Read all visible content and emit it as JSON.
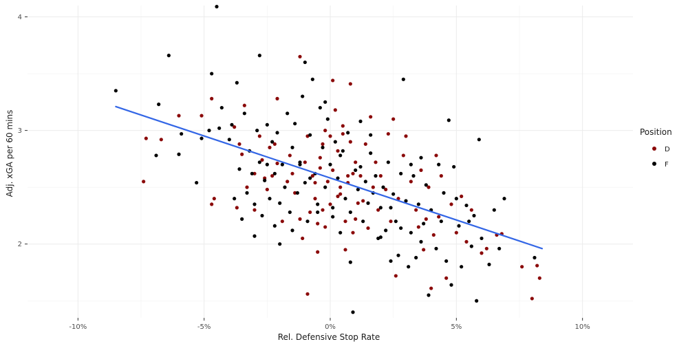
{
  "chart_data": {
    "type": "scatter",
    "xlabel": "Rel. Defensive Stop Rate",
    "ylabel": "Adj. xGA per 60 mins",
    "xlim": [
      -0.12,
      0.12
    ],
    "ylim": [
      1.35,
      4.1
    ],
    "x_ticks": [
      {
        "value": -0.1,
        "label": "-10%"
      },
      {
        "value": -0.05,
        "label": "-5%"
      },
      {
        "value": 0.0,
        "label": "0%"
      },
      {
        "value": 0.05,
        "label": "5%"
      },
      {
        "value": 0.1,
        "label": "10%"
      }
    ],
    "y_ticks": [
      {
        "value": 2,
        "label": "2"
      },
      {
        "value": 3,
        "label": "3"
      },
      {
        "value": 4,
        "label": "4"
      }
    ],
    "legend": {
      "title": "Position",
      "placement": "right",
      "entries": [
        {
          "label": "D",
          "color": "#8b0a0a"
        },
        {
          "label": "F",
          "color": "#000000"
        }
      ]
    },
    "trend_line": {
      "color": "#3366e6",
      "x": [
        -0.085,
        0.084
      ],
      "y": [
        3.21,
        1.96
      ]
    },
    "series": [
      {
        "name": "D",
        "color": "#8b0a0a",
        "points": [
          [
            -0.074,
            2.55
          ],
          [
            -0.073,
            2.93
          ],
          [
            -0.067,
            2.92
          ],
          [
            -0.06,
            3.13
          ],
          [
            -0.051,
            3.13
          ],
          [
            -0.047,
            3.28
          ],
          [
            -0.047,
            2.35
          ],
          [
            -0.046,
            2.4
          ],
          [
            -0.038,
            3.03
          ],
          [
            -0.036,
            2.88
          ],
          [
            -0.037,
            2.32
          ],
          [
            -0.035,
            2.79
          ],
          [
            -0.034,
            3.22
          ],
          [
            -0.033,
            2.5
          ],
          [
            -0.03,
            2.62
          ],
          [
            -0.03,
            2.3
          ],
          [
            -0.028,
            2.95
          ],
          [
            -0.027,
            2.74
          ],
          [
            -0.026,
            2.58
          ],
          [
            -0.025,
            2.48
          ],
          [
            -0.024,
            2.85
          ],
          [
            -0.023,
            2.6
          ],
          [
            -0.022,
            2.88
          ],
          [
            -0.021,
            2.71
          ],
          [
            -0.021,
            3.28
          ],
          [
            -0.019,
            2.2
          ],
          [
            -0.017,
            2.55
          ],
          [
            -0.016,
            2.78
          ],
          [
            -0.015,
            2.62
          ],
          [
            -0.014,
            2.45
          ],
          [
            -0.012,
            3.65
          ],
          [
            -0.011,
            2.05
          ],
          [
            -0.01,
            2.72
          ],
          [
            -0.009,
            2.95
          ],
          [
            -0.008,
            2.28
          ],
          [
            -0.007,
            2.6
          ],
          [
            -0.006,
            2.4
          ],
          [
            -0.005,
            2.18
          ],
          [
            -0.004,
            2.76
          ],
          [
            -0.003,
            2.88
          ],
          [
            -0.002,
            3.0
          ],
          [
            -0.001,
            2.55
          ],
          [
            0.0,
            2.35
          ],
          [
            0.001,
            2.65
          ],
          [
            0.002,
            3.18
          ],
          [
            0.003,
            2.82
          ],
          [
            0.004,
            2.44
          ],
          [
            0.005,
            2.97
          ],
          [
            0.006,
            2.2
          ],
          [
            0.007,
            2.6
          ],
          [
            0.008,
            2.9
          ],
          [
            0.009,
            2.1
          ],
          [
            0.01,
            2.72
          ],
          [
            0.011,
            2.36
          ],
          [
            -0.012,
            2.22
          ],
          [
            -0.009,
            1.56
          ],
          [
            -0.006,
            2.54
          ],
          [
            -0.004,
            2.67
          ],
          [
            -0.002,
            2.15
          ],
          [
            0.001,
            3.44
          ],
          [
            0.003,
            2.42
          ],
          [
            0.005,
            3.04
          ],
          [
            0.006,
            1.95
          ],
          [
            0.007,
            2.54
          ],
          [
            0.008,
            3.41
          ],
          [
            0.01,
            2.22
          ],
          [
            0.012,
            2.6
          ],
          [
            0.013,
            2.38
          ],
          [
            0.014,
            2.88
          ],
          [
            0.015,
            2.14
          ],
          [
            0.016,
            3.12
          ],
          [
            0.017,
            2.5
          ],
          [
            0.018,
            2.72
          ],
          [
            0.019,
            2.3
          ],
          [
            0.02,
            2.6
          ],
          [
            0.022,
            2.48
          ],
          [
            0.023,
            2.97
          ],
          [
            0.024,
            2.2
          ],
          [
            0.025,
            3.1
          ],
          [
            0.026,
            1.72
          ],
          [
            0.027,
            2.4
          ],
          [
            0.029,
            2.78
          ],
          [
            0.03,
            2.95
          ],
          [
            0.032,
            2.55
          ],
          [
            0.034,
            2.3
          ],
          [
            0.035,
            2.15
          ],
          [
            0.036,
            2.65
          ],
          [
            0.037,
            1.95
          ],
          [
            0.038,
            2.22
          ],
          [
            0.039,
            2.5
          ],
          [
            0.04,
            1.61
          ],
          [
            0.041,
            2.08
          ],
          [
            0.042,
            2.78
          ],
          [
            0.043,
            2.24
          ],
          [
            0.044,
            2.6
          ],
          [
            0.046,
            1.7
          ],
          [
            0.048,
            2.35
          ],
          [
            0.05,
            2.1
          ],
          [
            0.052,
            2.42
          ],
          [
            0.054,
            2.02
          ],
          [
            0.056,
            2.3
          ],
          [
            0.06,
            1.92
          ],
          [
            0.062,
            1.96
          ],
          [
            0.066,
            2.08
          ],
          [
            0.068,
            2.09
          ],
          [
            0.076,
            1.8
          ],
          [
            0.08,
            1.52
          ],
          [
            0.082,
            1.81
          ],
          [
            0.083,
            1.7
          ],
          [
            -0.005,
            1.93
          ],
          [
            -0.003,
            2.3
          ],
          [
            0.0,
            2.95
          ],
          [
            0.004,
            2.5
          ],
          [
            0.009,
            2.62
          ]
        ]
      },
      {
        "name": "F",
        "color": "#000000",
        "points": [
          [
            -0.085,
            3.35
          ],
          [
            -0.069,
            2.78
          ],
          [
            -0.068,
            3.23
          ],
          [
            -0.064,
            3.66
          ],
          [
            -0.06,
            2.79
          ],
          [
            -0.059,
            2.97
          ],
          [
            -0.053,
            2.54
          ],
          [
            -0.051,
            2.93
          ],
          [
            -0.048,
            3.0
          ],
          [
            -0.047,
            3.5
          ],
          [
            -0.045,
            4.09
          ],
          [
            -0.044,
            3.02
          ],
          [
            -0.043,
            3.2
          ],
          [
            -0.04,
            2.92
          ],
          [
            -0.039,
            3.05
          ],
          [
            -0.038,
            2.4
          ],
          [
            -0.037,
            3.42
          ],
          [
            -0.036,
            2.66
          ],
          [
            -0.035,
            2.22
          ],
          [
            -0.034,
            3.15
          ],
          [
            -0.033,
            2.45
          ],
          [
            -0.032,
            2.82
          ],
          [
            -0.031,
            2.62
          ],
          [
            -0.03,
            2.35
          ],
          [
            -0.029,
            3.0
          ],
          [
            -0.028,
            2.72
          ],
          [
            -0.028,
            3.66
          ],
          [
            -0.027,
            2.25
          ],
          [
            -0.026,
            2.56
          ],
          [
            -0.025,
            3.05
          ],
          [
            -0.024,
            2.4
          ],
          [
            -0.023,
            2.9
          ],
          [
            -0.022,
            2.16
          ],
          [
            -0.022,
            2.62
          ],
          [
            -0.021,
            2.98
          ],
          [
            -0.02,
            2.36
          ],
          [
            -0.019,
            2.7
          ],
          [
            -0.018,
            2.5
          ],
          [
            -0.017,
            3.15
          ],
          [
            -0.016,
            2.28
          ],
          [
            -0.015,
            2.85
          ],
          [
            -0.014,
            3.06
          ],
          [
            -0.013,
            2.45
          ],
          [
            -0.012,
            2.7
          ],
          [
            -0.011,
            3.3
          ],
          [
            -0.01,
            2.54
          ],
          [
            -0.01,
            3.6
          ],
          [
            -0.009,
            2.2
          ],
          [
            -0.008,
            2.96
          ],
          [
            -0.007,
            3.45
          ],
          [
            -0.006,
            2.62
          ],
          [
            -0.005,
            2.28
          ],
          [
            -0.004,
            3.2
          ],
          [
            -0.003,
            2.85
          ],
          [
            -0.002,
            2.5
          ],
          [
            -0.001,
            3.1
          ],
          [
            0.0,
            2.7
          ],
          [
            0.001,
            2.32
          ],
          [
            0.002,
            2.9
          ],
          [
            0.003,
            2.58
          ],
          [
            0.004,
            2.1
          ],
          [
            0.005,
            2.82
          ],
          [
            0.006,
            2.4
          ],
          [
            0.007,
            2.98
          ],
          [
            0.008,
            2.28
          ],
          [
            0.009,
            1.4
          ],
          [
            0.01,
            2.65
          ],
          [
            0.011,
            2.48
          ],
          [
            0.012,
            3.08
          ],
          [
            0.013,
            2.2
          ],
          [
            0.014,
            2.55
          ],
          [
            0.015,
            2.36
          ],
          [
            0.016,
            2.8
          ],
          [
            0.017,
            2.45
          ],
          [
            0.018,
            2.6
          ],
          [
            0.019,
            2.05
          ],
          [
            0.02,
            2.32
          ],
          [
            0.021,
            2.5
          ],
          [
            0.022,
            2.12
          ],
          [
            0.023,
            2.72
          ],
          [
            0.024,
            1.85
          ],
          [
            0.025,
            2.44
          ],
          [
            0.026,
            2.2
          ],
          [
            0.027,
            1.9
          ],
          [
            0.028,
            2.62
          ],
          [
            0.029,
            3.45
          ],
          [
            0.03,
            2.38
          ],
          [
            0.031,
            1.8
          ],
          [
            0.032,
            2.1
          ],
          [
            0.033,
            2.6
          ],
          [
            0.034,
            1.88
          ],
          [
            0.035,
            2.35
          ],
          [
            0.036,
            2.76
          ],
          [
            0.037,
            2.18
          ],
          [
            0.038,
            2.52
          ],
          [
            0.039,
            1.55
          ],
          [
            0.04,
            2.3
          ],
          [
            0.042,
            1.96
          ],
          [
            0.043,
            2.7
          ],
          [
            0.044,
            2.2
          ],
          [
            0.045,
            2.45
          ],
          [
            0.046,
            1.85
          ],
          [
            0.047,
            3.09
          ],
          [
            0.048,
            1.64
          ],
          [
            0.049,
            2.68
          ],
          [
            0.05,
            2.4
          ],
          [
            0.051,
            2.16
          ],
          [
            0.052,
            1.8
          ],
          [
            0.054,
            2.34
          ],
          [
            0.055,
            2.2
          ],
          [
            0.056,
            1.98
          ],
          [
            0.057,
            2.25
          ],
          [
            0.058,
            1.5
          ],
          [
            0.059,
            2.92
          ],
          [
            0.06,
            2.05
          ],
          [
            0.063,
            1.82
          ],
          [
            0.065,
            2.3
          ],
          [
            0.067,
            1.96
          ],
          [
            0.069,
            2.4
          ],
          [
            0.081,
            1.88
          ],
          [
            -0.03,
            2.07
          ],
          [
            -0.025,
            2.7
          ],
          [
            -0.02,
            2.0
          ],
          [
            -0.015,
            2.12
          ],
          [
            -0.012,
            2.72
          ],
          [
            -0.008,
            2.58
          ],
          [
            -0.005,
            2.35
          ],
          [
            -0.002,
            3.25
          ],
          [
            0.001,
            2.24
          ],
          [
            0.004,
            2.78
          ],
          [
            0.008,
            1.84
          ],
          [
            0.012,
            2.68
          ],
          [
            0.016,
            2.96
          ],
          [
            0.02,
            2.06
          ],
          [
            0.024,
            2.32
          ],
          [
            0.028,
            2.14
          ],
          [
            0.032,
            2.7
          ],
          [
            0.036,
            2.02
          ]
        ]
      }
    ]
  }
}
